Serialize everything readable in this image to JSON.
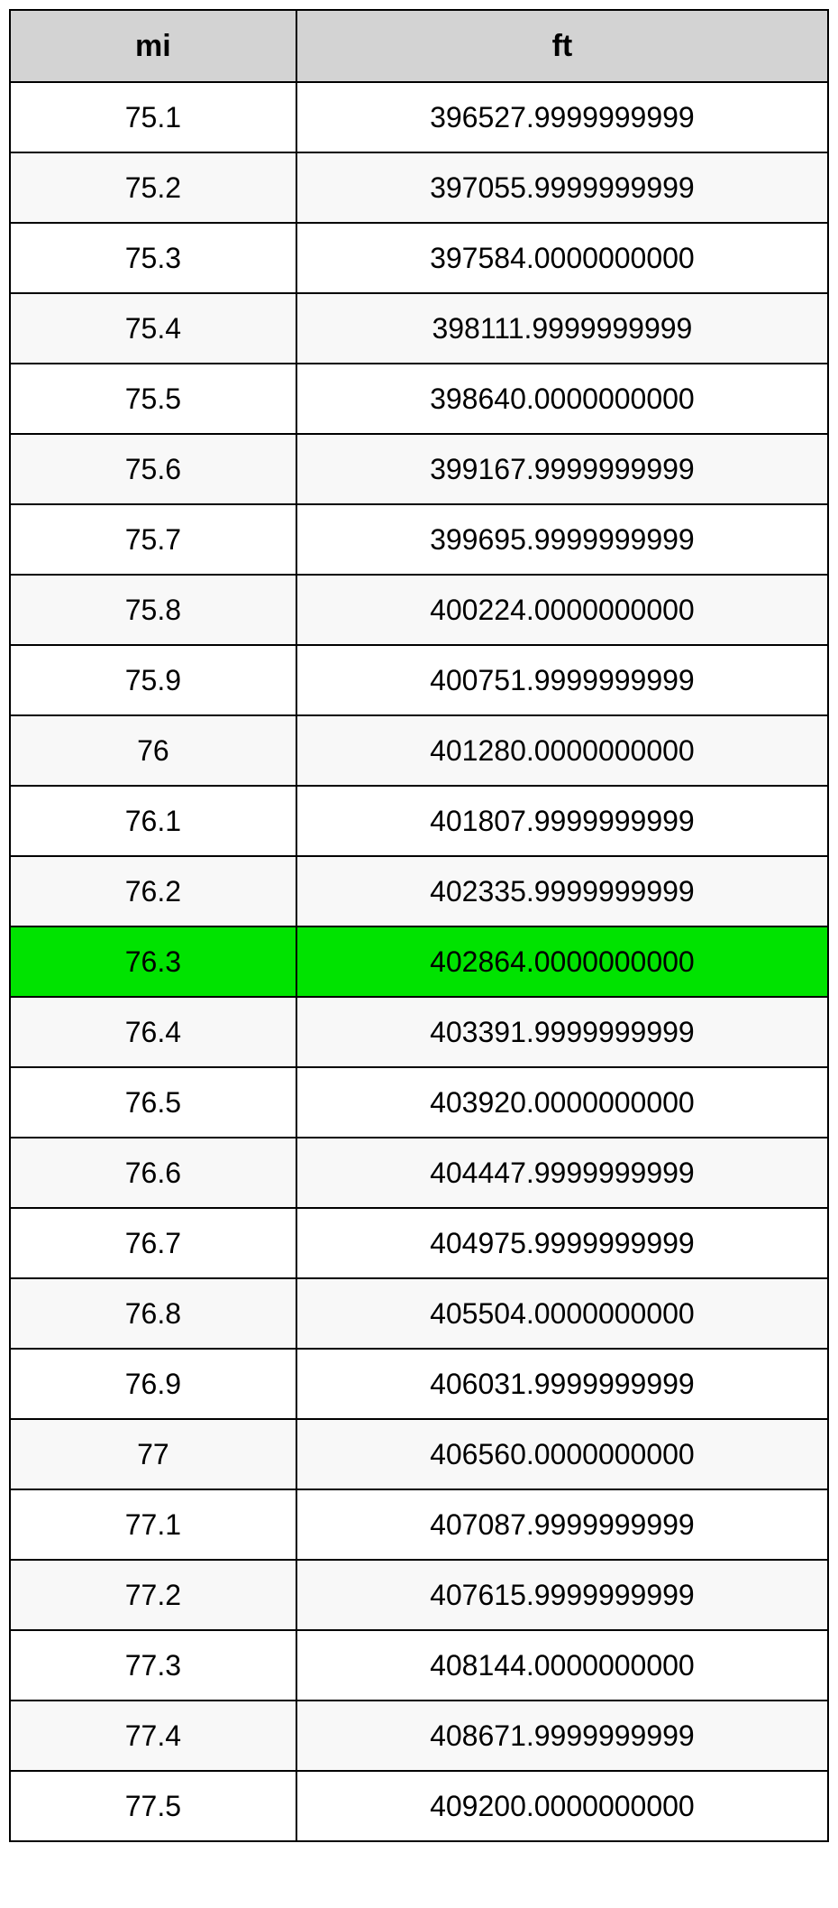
{
  "table": {
    "type": "table",
    "columns": [
      "mi",
      "ft"
    ],
    "header_bg": "#d3d3d3",
    "row_bg_white": "#ffffff",
    "row_bg_alt": "#f8f8f8",
    "highlight_bg": "#00e300",
    "border_color": "#000000",
    "text_color": "#000000",
    "header_fontsize": 34,
    "cell_fontsize": 32,
    "col_widths": [
      "35%",
      "65%"
    ],
    "highlight_index": 12,
    "rows": [
      {
        "mi": "75.1",
        "ft": "396527.9999999999"
      },
      {
        "mi": "75.2",
        "ft": "397055.9999999999"
      },
      {
        "mi": "75.3",
        "ft": "397584.0000000000"
      },
      {
        "mi": "75.4",
        "ft": "398111.9999999999"
      },
      {
        "mi": "75.5",
        "ft": "398640.0000000000"
      },
      {
        "mi": "75.6",
        "ft": "399167.9999999999"
      },
      {
        "mi": "75.7",
        "ft": "399695.9999999999"
      },
      {
        "mi": "75.8",
        "ft": "400224.0000000000"
      },
      {
        "mi": "75.9",
        "ft": "400751.9999999999"
      },
      {
        "mi": "76",
        "ft": "401280.0000000000"
      },
      {
        "mi": "76.1",
        "ft": "401807.9999999999"
      },
      {
        "mi": "76.2",
        "ft": "402335.9999999999"
      },
      {
        "mi": "76.3",
        "ft": "402864.0000000000"
      },
      {
        "mi": "76.4",
        "ft": "403391.9999999999"
      },
      {
        "mi": "76.5",
        "ft": "403920.0000000000"
      },
      {
        "mi": "76.6",
        "ft": "404447.9999999999"
      },
      {
        "mi": "76.7",
        "ft": "404975.9999999999"
      },
      {
        "mi": "76.8",
        "ft": "405504.0000000000"
      },
      {
        "mi": "76.9",
        "ft": "406031.9999999999"
      },
      {
        "mi": "77",
        "ft": "406560.0000000000"
      },
      {
        "mi": "77.1",
        "ft": "407087.9999999999"
      },
      {
        "mi": "77.2",
        "ft": "407615.9999999999"
      },
      {
        "mi": "77.3",
        "ft": "408144.0000000000"
      },
      {
        "mi": "77.4",
        "ft": "408671.9999999999"
      },
      {
        "mi": "77.5",
        "ft": "409200.0000000000"
      }
    ]
  }
}
